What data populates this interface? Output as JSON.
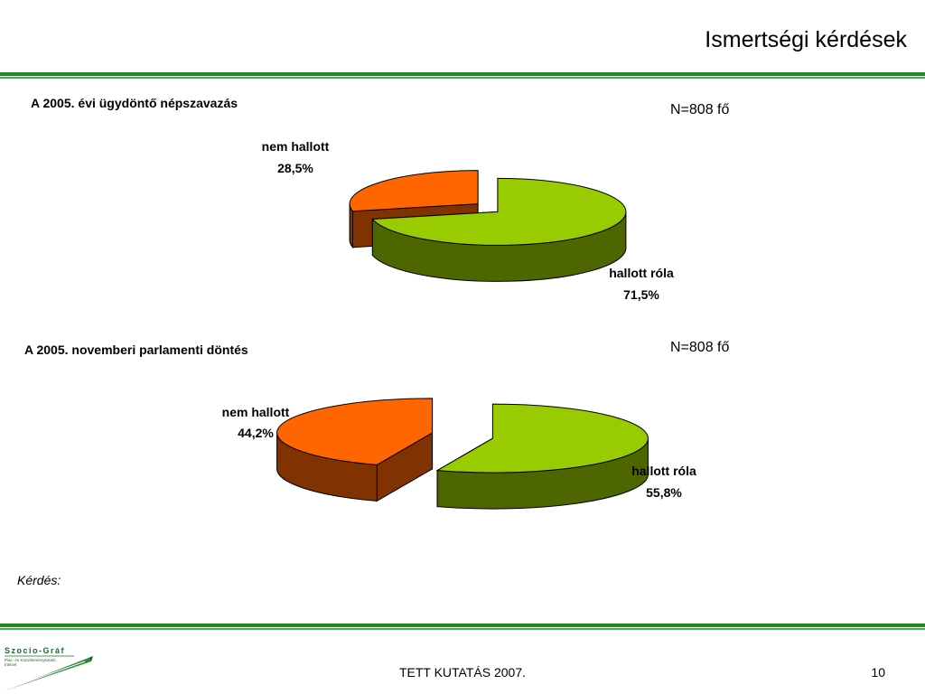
{
  "header": {
    "title": "Ismertségi kérdések"
  },
  "colors": {
    "rule_dark": "#1f8a1f",
    "rule_light": "#3cb44b",
    "slice_green_top": "#99cc00",
    "slice_green_side": "#4d6600",
    "slice_orange_top": "#ff6600",
    "slice_orange_side": "#803300"
  },
  "chart_data": [
    {
      "type": "pie",
      "title": "A 2005. évi ügydöntő népszavazás",
      "n_label": "N=808 fő",
      "slices": [
        {
          "name": "hallott róla",
          "value": 71.5,
          "value_label": "71,5%",
          "color": "#99cc00"
        },
        {
          "name": "nem hallott",
          "value": 28.5,
          "value_label": "28,5%",
          "color": "#ff6600"
        }
      ]
    },
    {
      "type": "pie",
      "title": "A 2005. novemberi parlamenti döntés",
      "n_label": "N=808 fő",
      "slices": [
        {
          "name": "hallott róla",
          "value": 55.8,
          "value_label": "55,8%",
          "color": "#99cc00"
        },
        {
          "name": "nem hallott",
          "value": 44.2,
          "value_label": "44,2%",
          "color": "#ff6600"
        }
      ]
    }
  ],
  "question_label": "Kérdés:",
  "footer": {
    "text": "TETT KUTATÁS 2007.",
    "page": "10"
  },
  "logo": {
    "name": "Szocio-Gráf",
    "tagline": "Piac- és Közvéleménykutató Intézet"
  }
}
